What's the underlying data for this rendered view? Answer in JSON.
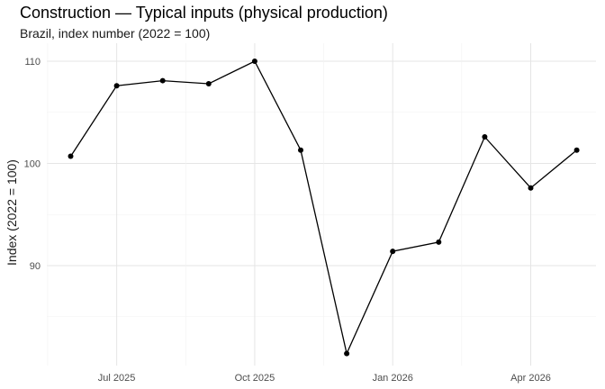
{
  "chart_data": {
    "type": "line",
    "title": "Construction — Typical inputs (physical production)",
    "subtitle": "Brazil, index number (2022 = 100)",
    "xlabel": "",
    "ylabel": "Index (2022 = 100)",
    "x": [
      "2025-06",
      "2025-07",
      "2025-08",
      "2025-09",
      "2025-10",
      "2025-11",
      "2025-12",
      "2026-01",
      "2026-02",
      "2026-03",
      "2026-04",
      "2026-05"
    ],
    "series": [
      {
        "values": [
          100.7,
          107.6,
          108.1,
          107.8,
          110.0,
          101.3,
          81.4,
          91.4,
          92.3,
          102.6,
          97.6,
          101.3
        ]
      }
    ],
    "x_ticks": [
      {
        "date": "2025-07",
        "label": "Jul 2025"
      },
      {
        "date": "2025-10",
        "label": "Oct 2025"
      },
      {
        "date": "2026-01",
        "label": "Jan 2026"
      },
      {
        "date": "2026-04",
        "label": "Apr 2026"
      }
    ],
    "y_ticks": [
      90,
      100,
      110
    ],
    "ylim": [
      80,
      111.5
    ],
    "grid": true,
    "legend": "none",
    "colors": {
      "line": "#000000",
      "grid_major": "#e5e5e5",
      "grid_minor": "#f2f2f2"
    }
  }
}
